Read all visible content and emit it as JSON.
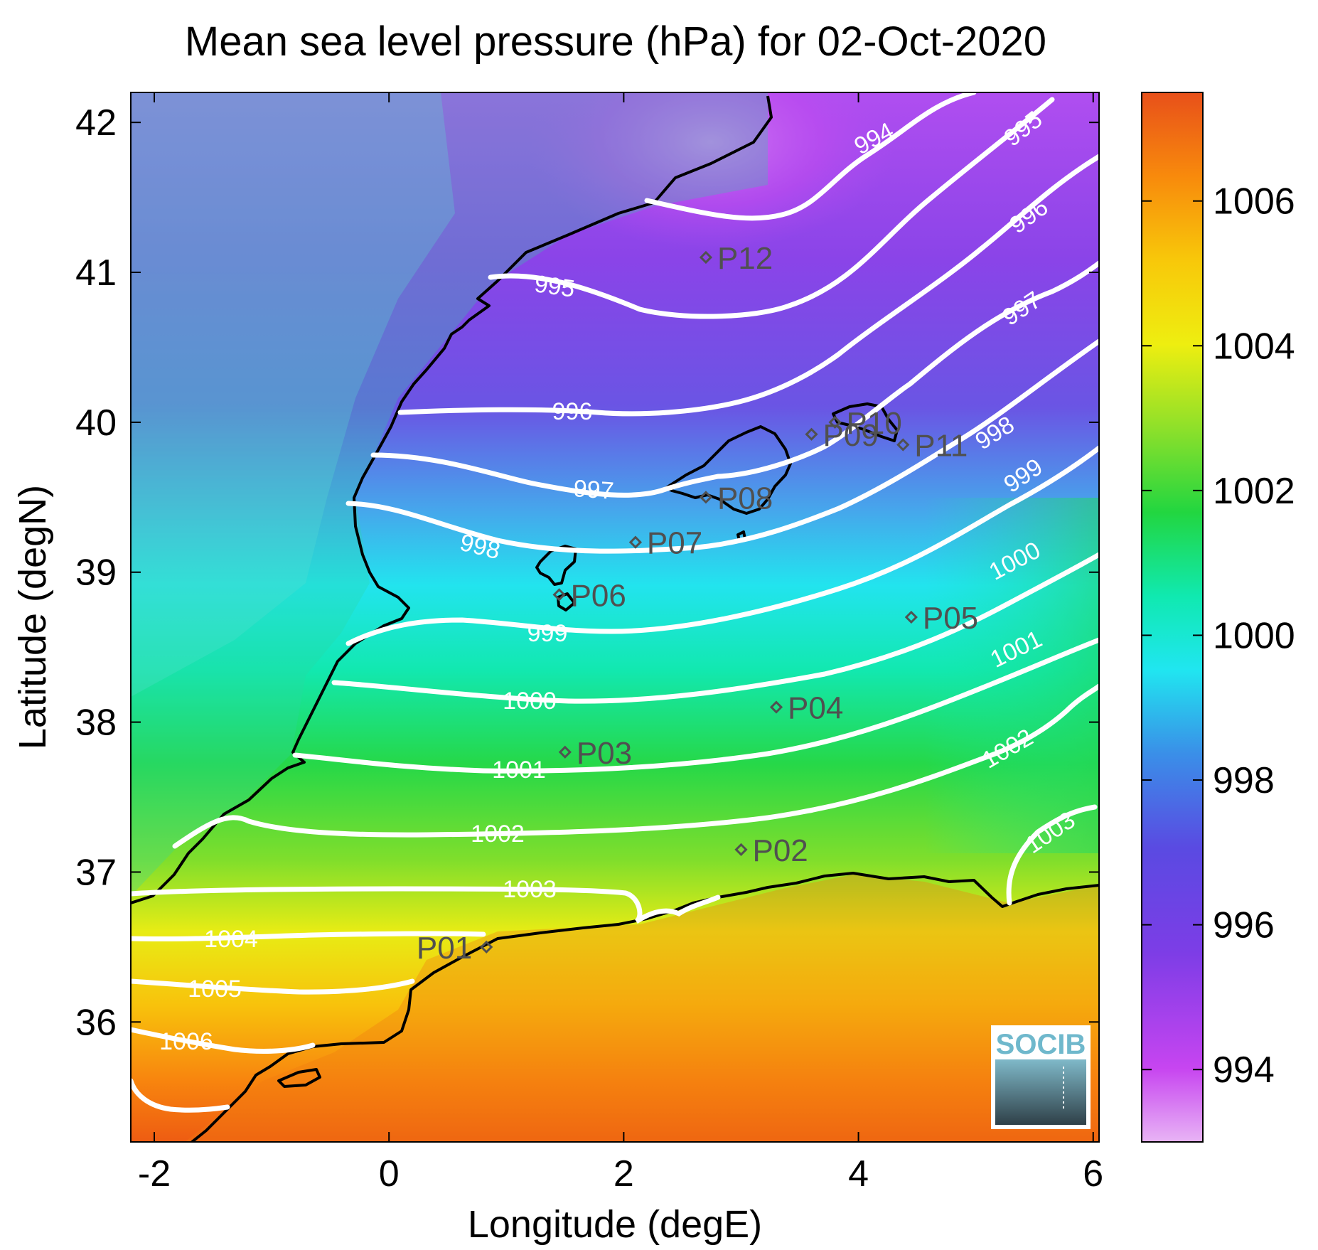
{
  "title": "Mean sea level pressure (hPa) for 02-Oct-2020",
  "xlabel": "Longitude (degE)",
  "ylabel": "Latitude (degN)",
  "logo_text": "SOCIB",
  "x_ticks": [
    "-2",
    "0",
    "2",
    "4",
    "6"
  ],
  "y_ticks": [
    "36",
    "37",
    "38",
    "39",
    "40",
    "41",
    "42"
  ],
  "colorbar": {
    "ticks": [
      "994",
      "996",
      "998",
      "1000",
      "1002",
      "1004",
      "1006"
    ],
    "range": [
      993.0,
      1007.5
    ],
    "colormap": [
      "#e8b4f5",
      "#c745f0",
      "#7d3de6",
      "#5a4ae2",
      "#3a8fe8",
      "#20e6f0",
      "#10e9b0",
      "#22d640",
      "#8ee02a",
      "#eeee10",
      "#f8c80a",
      "#f88a0c",
      "#e8501a"
    ]
  },
  "chart_data": {
    "type": "heatmap",
    "variable": "Mean sea level pressure",
    "units": "hPa",
    "date": "02-Oct-2020",
    "xlim": [
      -2.2,
      6.05
    ],
    "ylim": [
      35.2,
      42.2
    ],
    "contour_levels": [
      "994",
      "995",
      "996",
      "997",
      "998",
      "999",
      "1000",
      "1001",
      "1002",
      "1003",
      "1004",
      "1005",
      "1006"
    ],
    "stations": [
      {
        "name": "P01",
        "lon": 0.83,
        "lat": 36.5
      },
      {
        "name": "P02",
        "lon": 3.0,
        "lat": 37.15
      },
      {
        "name": "P03",
        "lon": 1.5,
        "lat": 37.8
      },
      {
        "name": "P04",
        "lon": 3.3,
        "lat": 38.1
      },
      {
        "name": "P05",
        "lon": 4.45,
        "lat": 38.7
      },
      {
        "name": "P06",
        "lon": 1.45,
        "lat": 38.85
      },
      {
        "name": "P07",
        "lon": 2.1,
        "lat": 39.2
      },
      {
        "name": "P08",
        "lon": 2.7,
        "lat": 39.5
      },
      {
        "name": "P09",
        "lon": 3.6,
        "lat": 39.92
      },
      {
        "name": "P10",
        "lon": 3.8,
        "lat": 40.0
      },
      {
        "name": "P11",
        "lon": 4.38,
        "lat": 39.85
      },
      {
        "name": "P12",
        "lon": 2.7,
        "lat": 41.1
      }
    ]
  }
}
